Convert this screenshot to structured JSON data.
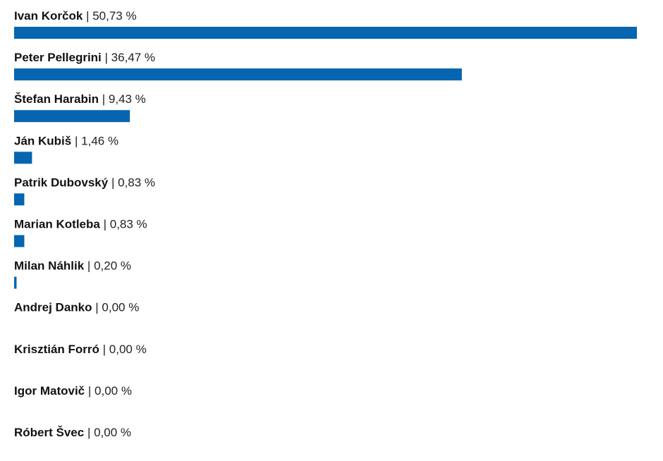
{
  "chart_data": {
    "type": "bar",
    "orientation": "horizontal",
    "color": "#0565b0",
    "separator": "|",
    "categories": [
      "Ivan Korčok",
      "Peter Pellegrini",
      "Štefan Harabin",
      "Ján Kubiš",
      "Patrik Dubovský",
      "Marian Kotleba",
      "Milan Náhlik",
      "Andrej Danko",
      "Krisztián Forró",
      "Igor Matovič",
      "Róbert Švec"
    ],
    "values": [
      50.73,
      36.47,
      9.43,
      1.46,
      0.83,
      0.83,
      0.2,
      0.0,
      0.0,
      0.0,
      0.0
    ],
    "value_labels": [
      "50,73 %",
      "36,47 %",
      "9,43 %",
      "1,46 %",
      "0,83 %",
      "0,83 %",
      "0,20 %",
      "0,00 %",
      "0,00 %",
      "0,00 %",
      "0,00 %"
    ]
  }
}
